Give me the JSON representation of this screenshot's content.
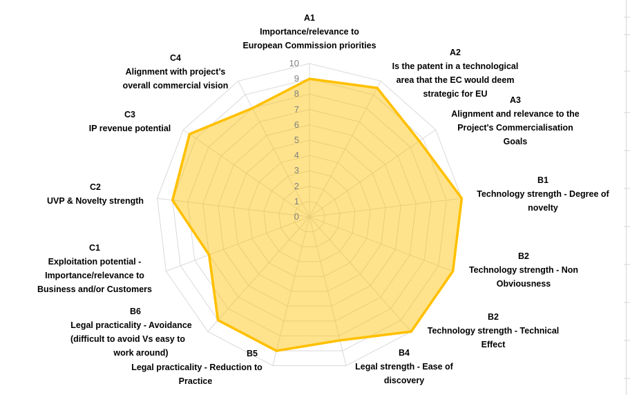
{
  "chart_data": {
    "type": "radar",
    "title": "",
    "legend": "none",
    "axis": {
      "min": 0,
      "max": 10,
      "tick_step": 1,
      "tick_labels": [
        "10",
        "9",
        "8",
        "7",
        "6",
        "5",
        "4",
        "3",
        "2",
        "1",
        "0"
      ],
      "grid": true,
      "grid_shape": "polygon-rings-with-spokes"
    },
    "categories": [
      {
        "code": "A1",
        "label": "Importance/relevance to European Commission priorities",
        "lines": [
          "A1",
          "Importance/relevance to",
          "European Commission priorities"
        ]
      },
      {
        "code": "A2",
        "label": "Is the patent in a technological area that the EC would deem strategic for EU",
        "lines": [
          "A2",
          "Is the patent in a technological",
          "area that the EC would deem",
          "strategic for EU"
        ]
      },
      {
        "code": "A3",
        "label": "Alignment and relevance to the Project's Commercialisation Goals",
        "lines": [
          "A3",
          "Alignment and relevance to the",
          "Project's Commercialisation",
          "Goals"
        ]
      },
      {
        "code": "B1",
        "label": "Technology strength - Degree of novelty",
        "lines": [
          "B1",
          "Technology strength - Degree of",
          "novelty"
        ]
      },
      {
        "code": "B2",
        "label": "Technology strength - Non Obviousness",
        "lines": [
          "B2",
          "Technology strength - Non",
          "Obviousness"
        ]
      },
      {
        "code": "B2",
        "label": "Technology strength - Technical Effect",
        "lines": [
          "B2",
          "Technology strength - Technical",
          "Effect"
        ]
      },
      {
        "code": "B4",
        "label": "Legal strength - Ease of discovery",
        "lines": [
          "B4",
          "Legal strength - Ease of",
          "discovery"
        ]
      },
      {
        "code": "B5",
        "label": "Legal practicality - Reduction to Practice",
        "lines": [
          "B5",
          "Legal practicality - Reduction to",
          "Practice"
        ]
      },
      {
        "code": "B6",
        "label": "Legal practicality - Avoidance (difficult to avoid Vs easy to work around)",
        "lines": [
          "B6",
          "Legal practicality - Avoidance",
          "(difficult to avoid Vs easy to",
          "work around)"
        ]
      },
      {
        "code": "C1",
        "label": "Exploitation potential - Importance/relevance to Business and/or Customers",
        "lines": [
          "C1",
          "Exploitation potential -",
          "Importance/relevance to",
          "Business and/or Customers"
        ]
      },
      {
        "code": "C2",
        "label": "UVP & Novelty strength",
        "lines": [
          "C2",
          "UVP & Novelty strength"
        ]
      },
      {
        "code": "C3",
        "label": "IP revenue potential",
        "lines": [
          "C3",
          "IP revenue potential"
        ]
      },
      {
        "code": "C4",
        "label": "Alignment with project’s overall commercial vision",
        "lines": [
          "C4",
          "Alignment with project’s",
          "overall commercial vision"
        ]
      }
    ],
    "series": [
      {
        "name": "",
        "values": [
          9,
          9.5,
          8.7,
          10,
          10,
          10,
          8.3,
          9,
          9,
          7,
          9,
          9.5,
          8
        ]
      }
    ],
    "colors": {
      "series_stroke": "#FFC000",
      "series_fill_rgba": "rgba(255,192,0,0.45)",
      "gridline": "#D9D9D9",
      "tick_text": "#7F7F7F",
      "category_text": "#000000",
      "background": "#FFFFFF"
    }
  }
}
